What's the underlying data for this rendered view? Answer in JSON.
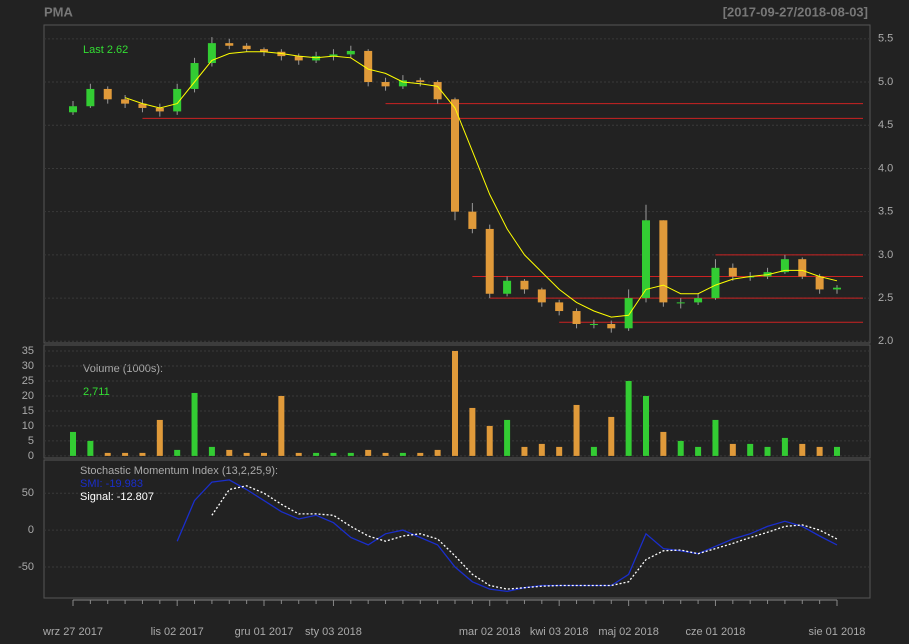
{
  "chart_data": [
    {
      "type": "candlestick",
      "title": "PMA",
      "subtitle": "[2017-09-27/2018-08-03]",
      "annotation": "Last 2.62",
      "open": [
        4.65,
        4.72,
        4.92,
        4.8,
        4.75,
        4.7,
        4.66,
        4.92,
        5.22,
        5.45,
        5.42,
        5.38,
        5.35,
        5.3,
        5.25,
        5.3,
        5.32,
        5.36,
        5.0,
        4.95,
        5.02,
        5.0,
        4.8,
        3.5,
        3.3,
        2.55,
        2.7,
        2.6,
        2.45,
        2.35,
        2.2,
        2.2,
        2.15,
        2.5,
        3.4,
        2.45,
        2.45,
        2.5,
        2.85,
        2.75,
        2.75,
        2.8,
        2.95,
        2.75,
        2.6
      ],
      "high": [
        4.78,
        4.98,
        4.95,
        4.85,
        4.8,
        4.75,
        4.98,
        5.28,
        5.52,
        5.5,
        5.45,
        5.4,
        5.38,
        5.33,
        5.35,
        5.38,
        5.42,
        5.38,
        5.05,
        5.08,
        5.05,
        5.02,
        4.82,
        3.6,
        3.35,
        2.75,
        2.72,
        2.62,
        2.48,
        2.38,
        2.25,
        2.24,
        2.6,
        3.58,
        3.4,
        2.5,
        2.55,
        2.95,
        2.9,
        2.8,
        2.85,
        3.0,
        2.97,
        2.78,
        2.65
      ],
      "low": [
        4.62,
        4.7,
        4.75,
        4.7,
        4.65,
        4.6,
        4.62,
        4.88,
        5.18,
        5.38,
        5.35,
        5.3,
        5.25,
        5.2,
        5.22,
        5.25,
        5.28,
        4.95,
        4.9,
        4.92,
        4.95,
        4.75,
        3.4,
        3.25,
        2.5,
        2.52,
        2.55,
        2.4,
        2.3,
        2.15,
        2.15,
        2.1,
        2.12,
        2.45,
        2.4,
        2.38,
        2.42,
        2.48,
        2.7,
        2.7,
        2.72,
        2.78,
        2.72,
        2.55,
        2.55
      ],
      "close": [
        4.72,
        4.92,
        4.8,
        4.75,
        4.7,
        4.66,
        4.92,
        5.22,
        5.45,
        5.42,
        5.38,
        5.35,
        5.3,
        5.25,
        5.3,
        5.32,
        5.36,
        5.0,
        4.95,
        5.02,
        5.0,
        4.8,
        3.5,
        3.3,
        2.55,
        2.7,
        2.6,
        2.45,
        2.35,
        2.2,
        2.2,
        2.15,
        2.5,
        3.4,
        2.45,
        2.45,
        2.5,
        2.85,
        2.75,
        2.75,
        2.8,
        2.95,
        2.75,
        2.6,
        2.62
      ],
      "up_color": "#33cc33",
      "down_color": "#e09a3a",
      "sma": {
        "color": "#ffff00",
        "values": [
          null,
          null,
          null,
          4.82,
          4.75,
          4.7,
          4.75,
          5.0,
          5.25,
          5.33,
          5.35,
          5.35,
          5.33,
          5.3,
          5.28,
          5.3,
          5.28,
          5.15,
          5.1,
          5.0,
          4.98,
          4.95,
          4.7,
          4.2,
          3.7,
          3.3,
          3.0,
          2.8,
          2.6,
          2.45,
          2.35,
          2.28,
          2.3,
          2.6,
          2.65,
          2.55,
          2.55,
          2.65,
          2.72,
          2.75,
          2.77,
          2.82,
          2.82,
          2.75,
          2.7
        ]
      },
      "levels": {
        "color": "#cc2222",
        "values": [
          4.75,
          4.58,
          3.0,
          2.75,
          2.5,
          2.22
        ],
        "start": [
          18,
          4,
          37,
          23,
          24,
          28
        ]
      },
      "ylim": [
        1.98,
        5.66
      ],
      "yticks": [
        {
          "value": 2,
          "label": "2.0"
        },
        {
          "value": 2.5,
          "label": "2.5"
        },
        {
          "value": 3,
          "label": "3.0"
        },
        {
          "value": 3.5,
          "label": "3.5"
        },
        {
          "value": 4,
          "label": "4.0"
        },
        {
          "value": 4.5,
          "label": "4.5"
        },
        {
          "value": 5,
          "label": "5.0"
        },
        {
          "value": 5.5,
          "label": "5.5"
        }
      ],
      "grid": true
    },
    {
      "type": "bar",
      "title": "Volume (1000s):",
      "annotation": "2,711",
      "values": [
        8,
        5,
        1,
        1,
        1,
        12,
        2,
        21,
        3,
        2,
        1,
        1,
        20,
        1,
        1,
        1,
        1,
        2,
        1,
        1,
        1,
        2,
        35,
        16,
        10,
        12,
        3,
        4,
        3,
        17,
        3,
        13,
        25,
        20,
        8,
        5,
        3,
        12,
        4,
        4,
        3,
        6,
        4,
        3,
        3
      ],
      "ylim": [
        -0.7,
        37
      ],
      "yticks": [
        0,
        5,
        10,
        15,
        20,
        25,
        30,
        35
      ],
      "grid": true
    },
    {
      "type": "line",
      "title": "Stochastic Momentum Index (13,2,25,9):",
      "categories": [
        "wrz 27 2017",
        null,
        null,
        null,
        null,
        null,
        "lis 02 2017",
        null,
        null,
        null,
        null,
        "gru 01 2017",
        null,
        null,
        null,
        "sty 03 2018",
        null,
        null,
        null,
        null,
        null,
        null,
        null,
        null,
        "mar 02 2018",
        null,
        null,
        null,
        "kwi 03 2018",
        null,
        null,
        null,
        "maj 02 2018",
        null,
        null,
        null,
        null,
        "cze 01 2018",
        null,
        null,
        null,
        null,
        null,
        null,
        "sie 01 2018"
      ],
      "series": [
        {
          "name": "SMI: -19.983",
          "color": "#1a2ecc",
          "dash": false,
          "values": [
            null,
            null,
            null,
            null,
            null,
            null,
            -15,
            40,
            65,
            68,
            55,
            40,
            25,
            15,
            20,
            10,
            -10,
            -20,
            -5,
            0,
            -10,
            -20,
            -50,
            -70,
            -80,
            -83,
            -78,
            -75,
            -75,
            -75,
            -75,
            -75,
            -60,
            -5,
            -25,
            -28,
            -32,
            -22,
            -12,
            -5,
            5,
            12,
            5,
            -8,
            -20
          ]
        },
        {
          "name": "Signal: -12.807",
          "color": "#ffffff",
          "dash": true,
          "values": [
            null,
            null,
            null,
            null,
            null,
            null,
            null,
            null,
            20,
            55,
            60,
            50,
            35,
            22,
            22,
            20,
            5,
            -8,
            -15,
            -8,
            -5,
            -12,
            -35,
            -60,
            -75,
            -80,
            -78,
            -76,
            -75,
            -75,
            -75,
            -75,
            -70,
            -40,
            -28,
            -27,
            -32,
            -25,
            -18,
            -10,
            -3,
            5,
            7,
            0,
            -12
          ]
        }
      ],
      "ylim": [
        -92,
        95
      ],
      "yticks": [
        -50,
        0,
        50
      ],
      "grid": true
    }
  ]
}
